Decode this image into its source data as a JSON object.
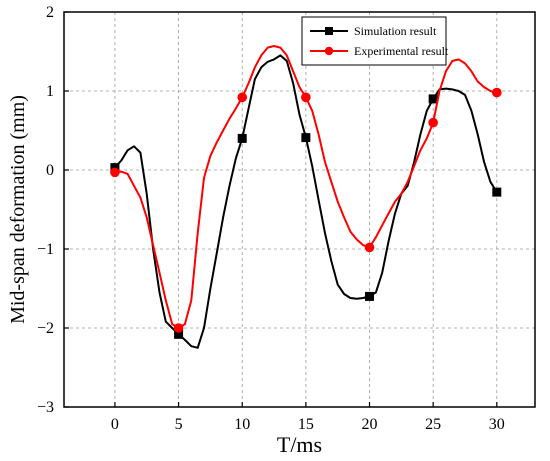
{
  "chart_data": {
    "type": "line",
    "xlabel": "T/ms",
    "ylabel": "Mid-span deformation (mm)",
    "xlim": [
      -4,
      33
    ],
    "ylim": [
      -3,
      2
    ],
    "xticks": [
      0,
      5,
      10,
      15,
      20,
      25,
      30
    ],
    "yticks": [
      -3,
      -2,
      -1,
      0,
      1,
      2
    ],
    "grid": "dashed",
    "legend_position": "top-right",
    "series": [
      {
        "name": "Simulation result",
        "color": "#000000",
        "marker": "square",
        "curve": [
          [
            0,
            0.03
          ],
          [
            0.5,
            0.12
          ],
          [
            1,
            0.25
          ],
          [
            1.5,
            0.3
          ],
          [
            2,
            0.22
          ],
          [
            2.5,
            -0.3
          ],
          [
            3,
            -1.0
          ],
          [
            3.5,
            -1.55
          ],
          [
            4,
            -1.92
          ],
          [
            4.5,
            -2.0
          ],
          [
            5,
            -2.08
          ],
          [
            5.5,
            -2.15
          ],
          [
            6,
            -2.23
          ],
          [
            6.5,
            -2.25
          ],
          [
            7,
            -2.0
          ],
          [
            7.5,
            -1.5
          ],
          [
            8,
            -1.05
          ],
          [
            8.5,
            -0.6
          ],
          [
            9,
            -0.2
          ],
          [
            9.5,
            0.15
          ],
          [
            10,
            0.4
          ],
          [
            10.5,
            0.78
          ],
          [
            11,
            1.15
          ],
          [
            11.5,
            1.3
          ],
          [
            12,
            1.37
          ],
          [
            12.5,
            1.4
          ],
          [
            13,
            1.45
          ],
          [
            13.5,
            1.38
          ],
          [
            14,
            1.1
          ],
          [
            14.5,
            0.7
          ],
          [
            15,
            0.41
          ],
          [
            15.5,
            0.05
          ],
          [
            16,
            -0.38
          ],
          [
            16.5,
            -0.8
          ],
          [
            17,
            -1.15
          ],
          [
            17.5,
            -1.45
          ],
          [
            18,
            -1.57
          ],
          [
            18.5,
            -1.62
          ],
          [
            19,
            -1.63
          ],
          [
            19.5,
            -1.62
          ],
          [
            20,
            -1.6
          ],
          [
            20.5,
            -1.55
          ],
          [
            21,
            -1.3
          ],
          [
            21.5,
            -0.9
          ],
          [
            22,
            -0.55
          ],
          [
            22.5,
            -0.3
          ],
          [
            23,
            -0.2
          ],
          [
            23.5,
            0.1
          ],
          [
            24,
            0.45
          ],
          [
            24.5,
            0.75
          ],
          [
            25,
            0.9
          ],
          [
            25.5,
            1.02
          ],
          [
            26,
            1.03
          ],
          [
            26.5,
            1.02
          ],
          [
            27,
            1.0
          ],
          [
            27.5,
            0.95
          ],
          [
            28,
            0.75
          ],
          [
            28.5,
            0.45
          ],
          [
            29,
            0.1
          ],
          [
            29.5,
            -0.15
          ],
          [
            30,
            -0.28
          ]
        ],
        "markers": [
          [
            0,
            0.03
          ],
          [
            5,
            -2.08
          ],
          [
            10,
            0.4
          ],
          [
            15,
            0.41
          ],
          [
            20,
            -1.6
          ],
          [
            25,
            0.9
          ],
          [
            30,
            -0.28
          ]
        ]
      },
      {
        "name": "Experimental result",
        "color": "#ff0000",
        "marker": "circle",
        "curve": [
          [
            0,
            -0.03
          ],
          [
            0.5,
            -0.02
          ],
          [
            1,
            -0.05
          ],
          [
            1.5,
            -0.2
          ],
          [
            2,
            -0.35
          ],
          [
            2.5,
            -0.6
          ],
          [
            3,
            -0.95
          ],
          [
            3.5,
            -1.3
          ],
          [
            4,
            -1.65
          ],
          [
            4.5,
            -1.95
          ],
          [
            5,
            -2.0
          ],
          [
            5.5,
            -1.95
          ],
          [
            6,
            -1.65
          ],
          [
            6.5,
            -0.8
          ],
          [
            7,
            -0.1
          ],
          [
            7.5,
            0.18
          ],
          [
            8,
            0.35
          ],
          [
            8.5,
            0.5
          ],
          [
            9,
            0.65
          ],
          [
            9.5,
            0.78
          ],
          [
            10,
            0.92
          ],
          [
            10.5,
            1.1
          ],
          [
            11,
            1.3
          ],
          [
            11.5,
            1.45
          ],
          [
            12,
            1.55
          ],
          [
            12.5,
            1.57
          ],
          [
            13,
            1.55
          ],
          [
            13.5,
            1.45
          ],
          [
            14,
            1.25
          ],
          [
            14.5,
            1.05
          ],
          [
            15,
            0.92
          ],
          [
            15.5,
            0.75
          ],
          [
            16,
            0.45
          ],
          [
            16.5,
            0.1
          ],
          [
            17,
            -0.15
          ],
          [
            17.5,
            -0.4
          ],
          [
            18,
            -0.6
          ],
          [
            18.5,
            -0.78
          ],
          [
            19,
            -0.88
          ],
          [
            19.5,
            -0.95
          ],
          [
            20,
            -0.98
          ],
          [
            20.5,
            -0.85
          ],
          [
            21,
            -0.7
          ],
          [
            21.5,
            -0.55
          ],
          [
            22,
            -0.4
          ],
          [
            22.5,
            -0.3
          ],
          [
            23,
            -0.15
          ],
          [
            23.5,
            0.05
          ],
          [
            24,
            0.25
          ],
          [
            24.5,
            0.4
          ],
          [
            25,
            0.6
          ],
          [
            25.5,
            1.0
          ],
          [
            26,
            1.25
          ],
          [
            26.5,
            1.38
          ],
          [
            27,
            1.4
          ],
          [
            27.5,
            1.35
          ],
          [
            28,
            1.25
          ],
          [
            28.5,
            1.12
          ],
          [
            29,
            1.05
          ],
          [
            29.5,
            1.0
          ],
          [
            30,
            0.98
          ]
        ],
        "markers": [
          [
            0,
            -0.03
          ],
          [
            5,
            -2.0
          ],
          [
            10,
            0.92
          ],
          [
            15,
            0.92
          ],
          [
            20,
            -0.98
          ],
          [
            25,
            0.6
          ],
          [
            30,
            0.98
          ]
        ]
      }
    ]
  }
}
